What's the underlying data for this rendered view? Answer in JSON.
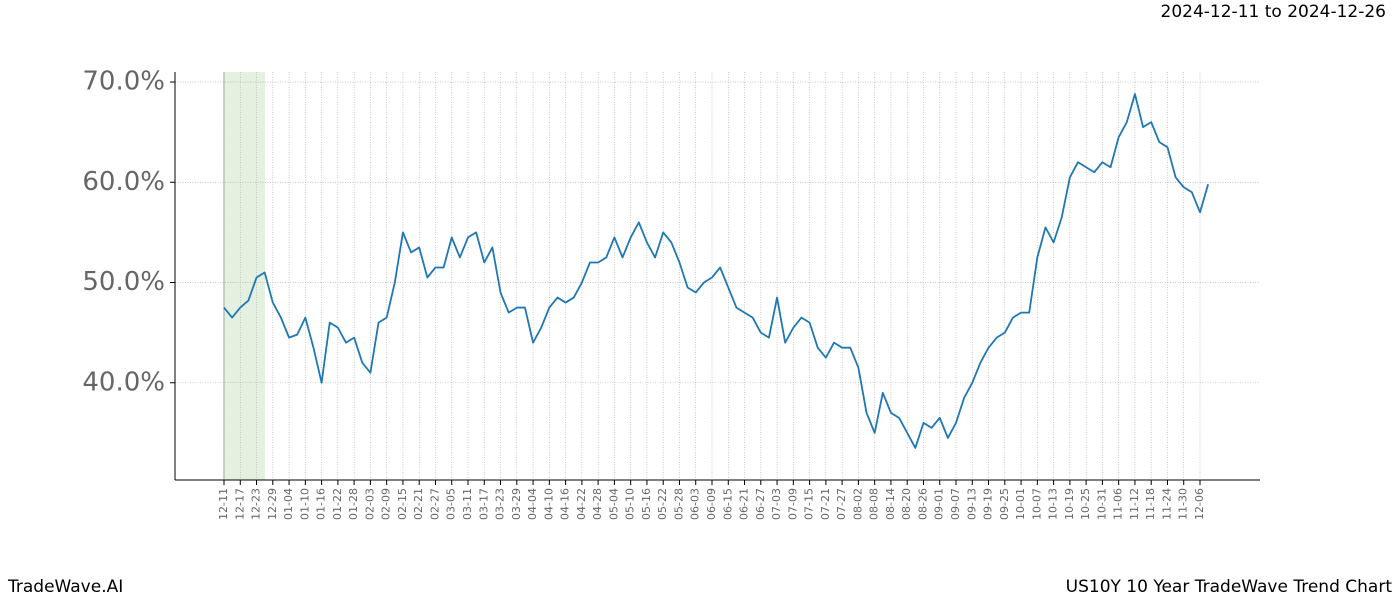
{
  "header": {
    "date_range": "2024-12-11 to 2024-12-26"
  },
  "footer": {
    "brand": "TradeWave.AI",
    "chart_name": "US10Y 10 Year TradeWave Trend Chart"
  },
  "chart_data": {
    "type": "line",
    "categories": [
      "12-11",
      null,
      "12-17",
      null,
      "12-23",
      null,
      "12-29",
      null,
      "01-04",
      null,
      "01-10",
      null,
      "01-16",
      null,
      "01-22",
      null,
      "01-28",
      null,
      "02-03",
      null,
      "02-09",
      null,
      "02-15",
      null,
      "02-21",
      null,
      "02-27",
      null,
      "03-05",
      null,
      "03-11",
      null,
      "03-17",
      null,
      "03-23",
      null,
      "03-29",
      null,
      "04-04",
      null,
      "04-10",
      null,
      "04-16",
      null,
      "04-22",
      null,
      "04-28",
      null,
      "05-04",
      null,
      "05-10",
      null,
      "05-16",
      null,
      "05-22",
      null,
      "05-28",
      null,
      "06-03",
      null,
      "06-09",
      null,
      "06-15",
      null,
      "06-21",
      null,
      "06-27",
      null,
      "07-03",
      null,
      "07-09",
      null,
      "07-15",
      null,
      "07-21",
      null,
      "07-27",
      null,
      "08-02",
      null,
      "08-08",
      null,
      "08-14",
      null,
      "08-20",
      null,
      "08-26",
      null,
      "09-01",
      null,
      "09-07",
      null,
      "09-13",
      null,
      "09-19",
      null,
      "09-25",
      null,
      "10-01",
      null,
      "10-07",
      null,
      "10-13",
      null,
      "10-19",
      null,
      "10-25",
      null,
      "10-31",
      null,
      "11-06",
      null,
      "11-12",
      null,
      "11-18",
      null,
      "11-24",
      null,
      "11-30",
      null,
      "12-06",
      null
    ],
    "series": [
      {
        "color": "#1f77b4",
        "values": [
          47.5,
          46.5,
          47.5,
          48.2,
          50.5,
          51,
          48,
          46.5,
          44.5,
          44.8,
          46.5,
          43.5,
          40,
          46,
          45.5,
          44,
          44.5,
          42,
          41,
          46,
          46.5,
          50,
          55,
          53,
          53.5,
          50.5,
          51.5,
          51.5,
          54.5,
          52.5,
          54.5,
          55,
          52,
          53.5,
          49,
          47,
          47.5,
          47.5,
          44,
          45.5,
          47.5,
          48.5,
          48,
          48.5,
          50,
          52,
          52,
          52.5,
          54.5,
          52.5,
          54.5,
          56,
          54,
          52.5,
          55,
          54,
          52,
          49.5,
          49,
          50,
          50.5,
          51.5,
          49.5,
          47.5,
          47,
          46.5,
          45,
          44.5,
          48.5,
          44,
          45.5,
          46.5,
          46,
          43.5,
          42.5,
          44,
          43.5,
          43.5,
          41.5,
          37,
          35,
          39,
          37,
          36.5,
          35,
          33.5,
          36,
          35.5,
          36.5,
          34.5,
          36,
          38.5,
          40,
          42,
          43.5,
          44.5,
          45,
          46.5,
          47,
          47,
          52.5,
          55.5,
          54,
          56.5,
          60.5,
          62,
          61.5,
          61,
          62,
          61.5,
          64.5,
          66,
          68.8,
          65.5,
          66,
          64,
          63.5,
          60.5,
          59.5,
          59,
          57,
          59.8
        ]
      }
    ],
    "ylim": [
      30.3,
      71.0
    ],
    "yticks": [
      {
        "value": 40,
        "label": "40.0%"
      },
      {
        "value": 50,
        "label": "50.0%"
      },
      {
        "value": 60,
        "label": "60.0%"
      },
      {
        "value": 70,
        "label": "70.0%"
      }
    ],
    "grid": true
  }
}
